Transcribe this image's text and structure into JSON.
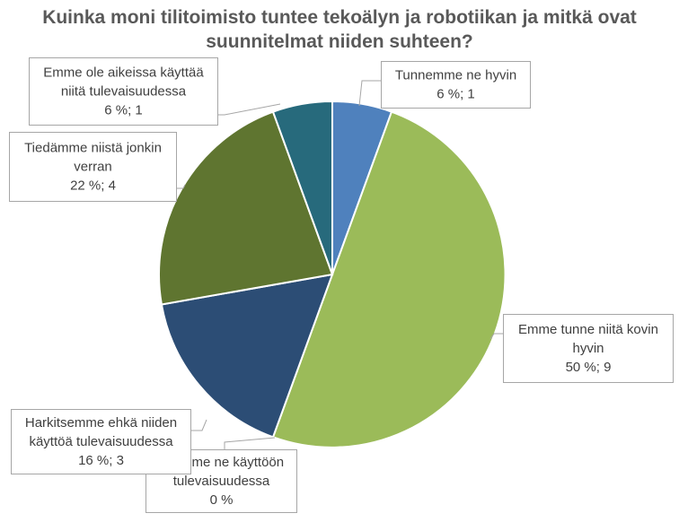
{
  "chart_data": {
    "type": "pie",
    "title_lines": [
      "Kuinka moni tilitoimisto tuntee tekoälyn ja robotiikan ja mitkä ovat",
      "suunnitelmat niiden suhteen?"
    ],
    "slices": [
      {
        "lines": [
          "Tunnemme ne hyvin",
          "6 %; 1"
        ],
        "count": 1,
        "percent": 6,
        "color": "#4f81bd"
      },
      {
        "lines": [
          "Emme tunne niitä kovin",
          "hyvin",
          "50 %; 9"
        ],
        "count": 9,
        "percent": 50,
        "color": "#9bbb59"
      },
      {
        "lines": [
          "Otamme ne käyttöön",
          "tulevaisuudessa",
          "0 %"
        ],
        "count": 0,
        "percent": 0,
        "color": "#8064a2"
      },
      {
        "lines": [
          "Harkitsemme ehkä niiden",
          "käyttöä tulevaisuudessa",
          "16 %; 3"
        ],
        "count": 3,
        "percent": 16,
        "color": "#2c4d75"
      },
      {
        "lines": [
          "Tiedämme niistä jonkin",
          "verran",
          "22 %; 4"
        ],
        "count": 4,
        "percent": 22,
        "color": "#5f7530"
      },
      {
        "lines": [
          "Emme ole aikeissa käyttää",
          "niitä tulevaisuudessa",
          "6 %; 1"
        ],
        "count": 1,
        "percent": 6,
        "color": "#276a7c"
      }
    ]
  }
}
